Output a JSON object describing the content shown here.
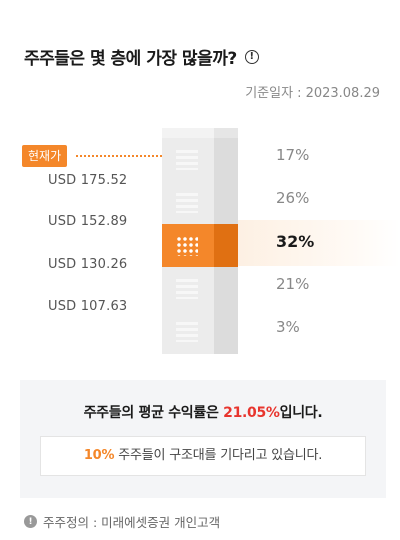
{
  "header": {
    "title": "주주들은 몇 층에 가장 많을까?",
    "info_icon": "info-circle-icon"
  },
  "reference": {
    "label": "기준일자 :",
    "date": "2023.08.29"
  },
  "current_price_badge": "현재가",
  "price_levels": [
    "USD 175.52",
    "USD 152.89",
    "USD 130.26",
    "USD 107.63"
  ],
  "floors": [
    {
      "percent": "17%",
      "active": false
    },
    {
      "percent": "26%",
      "active": false
    },
    {
      "percent": "32%",
      "active": true
    },
    {
      "percent": "21%",
      "active": false
    },
    {
      "percent": "3%",
      "active": false
    }
  ],
  "summary": {
    "main_prefix": "주주들의 평균 수익률은 ",
    "main_value": "21.05%",
    "main_suffix": "입니다.",
    "sub_value": "10%",
    "sub_text": " 주주들이 구조대를 기다리고 있습니다."
  },
  "footnote": {
    "icon": "info-circle-icon",
    "text": "주주정의 : 미래에셋증권 개인고객"
  },
  "colors": {
    "accent": "#f4872a",
    "highlight_red": "#e8352e"
  }
}
